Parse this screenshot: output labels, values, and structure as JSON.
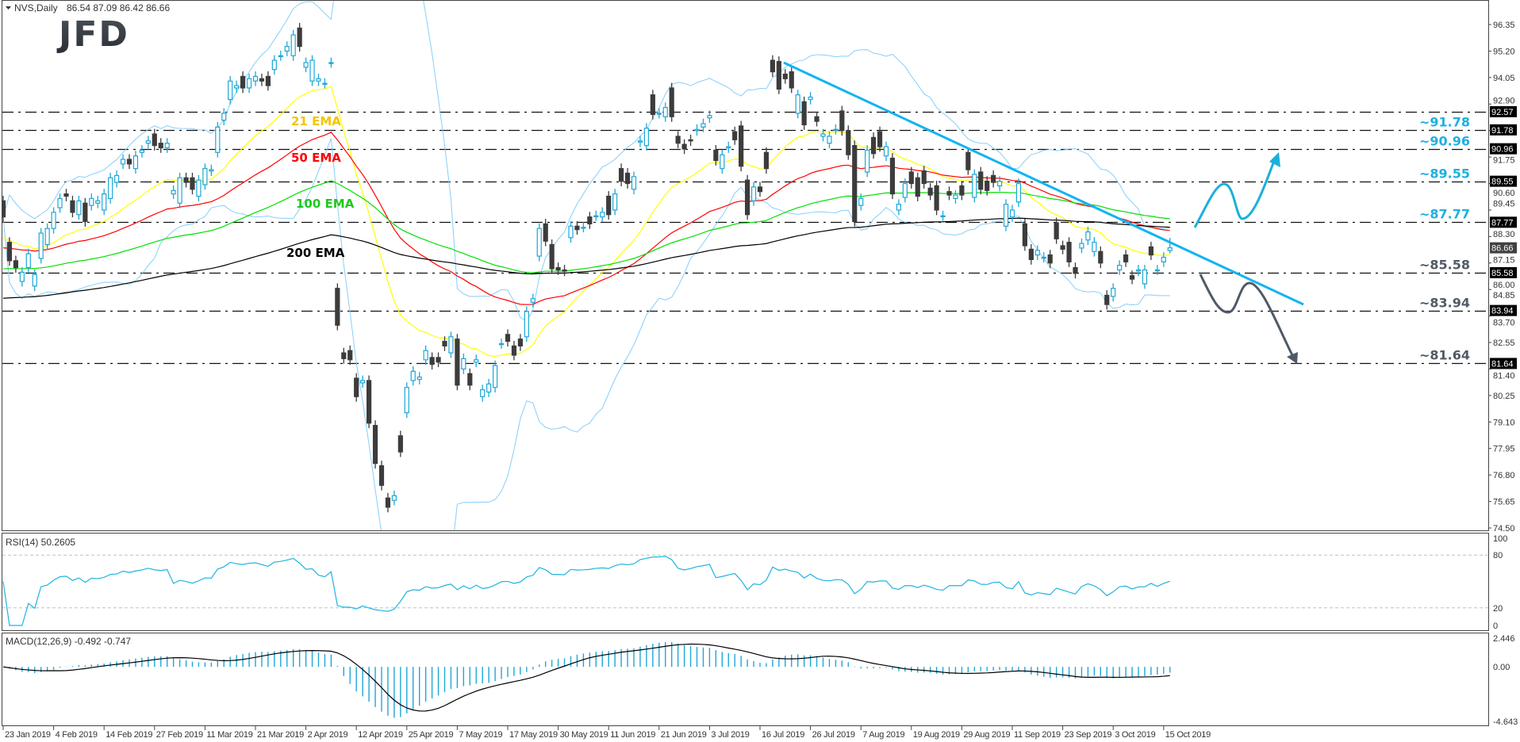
{
  "header": {
    "symbol": "NVS,Daily",
    "ohlc": "86.54 87.09 86.42 86.66"
  },
  "logo": {
    "text": "JFD"
  },
  "chart_data": {
    "type": "candlestick",
    "title": "NVS,Daily",
    "x_tick_labels": [
      "23 Jan 2019",
      "4 Feb 2019",
      "14 Feb 2019",
      "27 Feb 2019",
      "11 Mar 2019",
      "21 Mar 2019",
      "2 Apr 2019",
      "12 Apr 2019",
      "25 Apr 2019",
      "7 May 2019",
      "17 May 2019",
      "30 May 2019",
      "11 Jun 2019",
      "21 Jun 2019",
      "3 Jul 2019",
      "16 Jul 2019",
      "26 Jul 2019",
      "7 Aug 2019",
      "19 Aug 2019",
      "29 Aug 2019",
      "11 Sep 2019",
      "23 Sep 2019",
      "3 Oct 2019",
      "15 Oct 2019"
    ],
    "y_tick_labels": [
      "96.35",
      "95.20",
      "94.05",
      "92.90",
      "91.75",
      "90.60",
      "89.45",
      "88.30",
      "87.15",
      "86.00",
      "84.85",
      "83.70",
      "82.55",
      "81.40",
      "80.25",
      "79.10",
      "77.95",
      "76.80",
      "75.65",
      "74.50"
    ],
    "ylim": [
      74.5,
      96.35
    ],
    "last_bar": {
      "open": 86.54,
      "high": 87.09,
      "low": 86.42,
      "close": 86.66
    },
    "open": [
      88.7,
      86.9,
      86.1,
      85.2,
      85.8,
      85.0,
      86.2,
      86.8,
      87.5,
      88.4,
      89.0,
      88.7,
      88.1,
      88.6,
      88.5,
      88.6,
      88.3,
      88.8,
      89.5,
      90.3,
      90.5,
      90.1,
      90.8,
      91.2,
      91.6,
      91.2,
      91.0,
      89.0,
      88.6,
      89.7,
      89.7,
      88.9,
      89.4,
      90.0,
      90.8,
      92.2,
      93.1,
      93.6,
      94.1,
      93.6,
      93.9,
      94.0,
      94.1,
      94.4,
      95.0,
      95.2,
      95.0,
      96.2,
      94.5,
      93.9,
      93.9,
      93.8,
      94.7,
      84.9,
      82.1,
      82.2,
      81.0,
      80.8,
      80.9,
      78.95,
      77.2,
      75.8,
      75.7,
      78.5,
      79.5,
      80.9,
      80.95,
      81.8,
      81.9,
      81.9,
      82.6,
      82.1,
      82.7,
      81.4,
      81.2,
      81.7,
      80.2,
      80.4,
      80.6,
      82.5,
      82.9,
      82.4,
      82.7,
      82.8,
      84.3,
      86.3,
      87.7,
      86.8,
      85.8,
      85.7,
      87.1,
      87.6,
      87.55,
      88.0,
      88.05,
      88.0,
      88.9,
      88.3,
      90.1,
      89.9,
      89.2,
      91.25,
      91.1,
      93.3,
      92.5,
      92.35,
      93.6,
      91.5,
      91.15,
      91.35,
      91.75,
      91.9,
      92.3,
      90.9,
      90.1,
      91.0,
      91.7,
      91.95,
      89.6,
      88.7,
      89.3,
      90.8,
      94.8,
      94.75,
      94.2,
      94.3,
      92.5,
      93.0,
      93.1,
      92.35,
      91.5,
      91.2,
      91.8,
      92.6,
      91.75,
      91.1,
      88.5,
      89.95,
      91.45,
      91.7,
      90.65,
      90.55,
      88.3,
      88.85,
      89.95,
      89.7,
      90.0,
      89.25,
      89.35,
      88.05,
      89.1,
      88.8,
      89.35,
      90.8,
      88.85,
      89.95,
      89.55,
      89.8,
      89.35,
      87.6,
      88.0,
      88.65,
      87.7,
      86.6,
      86.35,
      86.25,
      86.35,
      87.75,
      86.75,
      86.9,
      85.8,
      86.65,
      87.0,
      86.5,
      86.5,
      84.6,
      84.55,
      85.7,
      86.35,
      85.45,
      85.65,
      85.1,
      86.7,
      85.7,
      86.05,
      86.54
    ],
    "close": [
      88.0,
      86.1,
      85.8,
      85.6,
      86.4,
      85.5,
      87.3,
      87.5,
      88.2,
      88.8,
      88.9,
      88.2,
      88.7,
      87.8,
      88.8,
      88.7,
      89.0,
      89.7,
      89.8,
      90.5,
      90.3,
      90.65,
      90.9,
      91.3,
      91.1,
      91.0,
      91.2,
      89.15,
      89.7,
      89.5,
      89.2,
      89.6,
      90.1,
      90.05,
      91.9,
      92.5,
      93.9,
      93.7,
      93.6,
      94.0,
      94.1,
      93.9,
      93.7,
      94.8,
      95.0,
      95.4,
      95.9,
      95.4,
      94.7,
      94.8,
      94.0,
      93.8,
      94.7,
      83.3,
      81.85,
      81.8,
      80.2,
      80.9,
      79.05,
      77.3,
      76.35,
      75.4,
      75.9,
      77.8,
      80.6,
      81.3,
      81.05,
      82.2,
      81.6,
      81.7,
      82.4,
      82.8,
      80.7,
      81.85,
      80.7,
      81.8,
      80.5,
      80.75,
      81.55,
      82.5,
      82.6,
      82.0,
      82.4,
      83.9,
      84.45,
      87.5,
      86.95,
      85.75,
      85.7,
      85.65,
      87.6,
      87.45,
      87.55,
      87.7,
      88.05,
      88.2,
      88.1,
      89.0,
      89.55,
      89.45,
      89.75,
      91.3,
      91.85,
      92.45,
      92.5,
      92.75,
      92.35,
      91.2,
      90.95,
      91.3,
      91.8,
      92.05,
      92.4,
      90.45,
      90.7,
      91.05,
      91.35,
      90.2,
      88.1,
      89.3,
      89.1,
      90.1,
      94.3,
      93.55,
      94.0,
      93.6,
      93.3,
      92.0,
      93.2,
      92.15,
      91.6,
      91.5,
      91.8,
      91.75,
      90.7,
      87.8,
      88.8,
      90.9,
      90.75,
      91.05,
      91.05,
      89.0,
      88.55,
      89.45,
      89.45,
      88.9,
      89.45,
      88.95,
      88.3,
      88.05,
      88.95,
      88.95,
      88.95,
      90.05,
      89.85,
      89.2,
      89.15,
      89.5,
      89.55,
      88.55,
      88.3,
      89.45,
      86.75,
      86.15,
      86.55,
      86.25,
      86.0,
      87.05,
      86.6,
      86.05,
      85.55,
      86.85,
      87.35,
      86.9,
      86.0,
      84.2,
      84.9,
      85.9,
      86.05,
      85.3,
      85.7,
      85.7,
      86.35,
      85.7,
      86.25,
      86.66
    ],
    "current_price": "86.66",
    "levels": [
      {
        "value": 92.57,
        "axis_label": "92.57",
        "label": "",
        "color": "#1fb0e0"
      },
      {
        "value": 91.78,
        "axis_label": "91.78",
        "label": "~91.78",
        "color": "#1fb0e0"
      },
      {
        "value": 90.96,
        "axis_label": "90.96",
        "label": "~90.96",
        "color": "#1fb0e0"
      },
      {
        "value": 89.55,
        "axis_label": "89.55",
        "label": "~89.55",
        "color": "#1fb0e0"
      },
      {
        "value": 87.77,
        "axis_label": "87.77",
        "label": "~87.77",
        "color": "#1fb0e0"
      },
      {
        "value": 85.58,
        "axis_label": "85.58",
        "label": "~85.58",
        "color": "#505a66"
      },
      {
        "value": 83.94,
        "axis_label": "83.94",
        "label": "~83.94",
        "color": "#505a66"
      },
      {
        "value": 81.64,
        "axis_label": "81.64",
        "label": "~81.64",
        "color": "#505a66"
      }
    ],
    "ema": [
      {
        "name": "21 EMA",
        "period": 21,
        "start": 87.07,
        "color": "#ffff00",
        "label_color": "#f2c500"
      },
      {
        "name": "50 EMA",
        "period": 50,
        "start": 86.66,
        "color": "#ff0000",
        "label_color": "#ff0000"
      },
      {
        "name": "100 EMA",
        "period": 100,
        "start": 85.75,
        "color": "#00e000",
        "label_color": "#1ec81e"
      },
      {
        "name": "200 EMA",
        "period": 200,
        "start": 84.47,
        "color": "#000000",
        "label_color": "#000000"
      }
    ],
    "bollinger": {
      "period": 20,
      "deviation": 2,
      "color": "#87cefa"
    },
    "trendline_color": "#12b4f0",
    "scenario_colors": {
      "bullish": "#1ab0dc",
      "bearish": "#505a66"
    },
    "bull_color": "#1ea7d6",
    "bear_color": "#3c3c3c",
    "rsi": {
      "label": "RSI(14) 50.2605",
      "period": 14,
      "levels": [
        80,
        20
      ],
      "tick_labels": [
        "100",
        "80",
        "20",
        "0"
      ],
      "color": "#1eb4e0"
    },
    "macd": {
      "label": "MACD(12,26,9) -0.492 -0.747",
      "fast": 12,
      "slow": 26,
      "signal": 9,
      "ylim": [
        -4.643,
        2.446
      ],
      "tick_labels": [
        "2.446",
        "0.00",
        "-4.643"
      ],
      "hist_color": "#1ea7d6",
      "signal_color": "#000000"
    }
  }
}
